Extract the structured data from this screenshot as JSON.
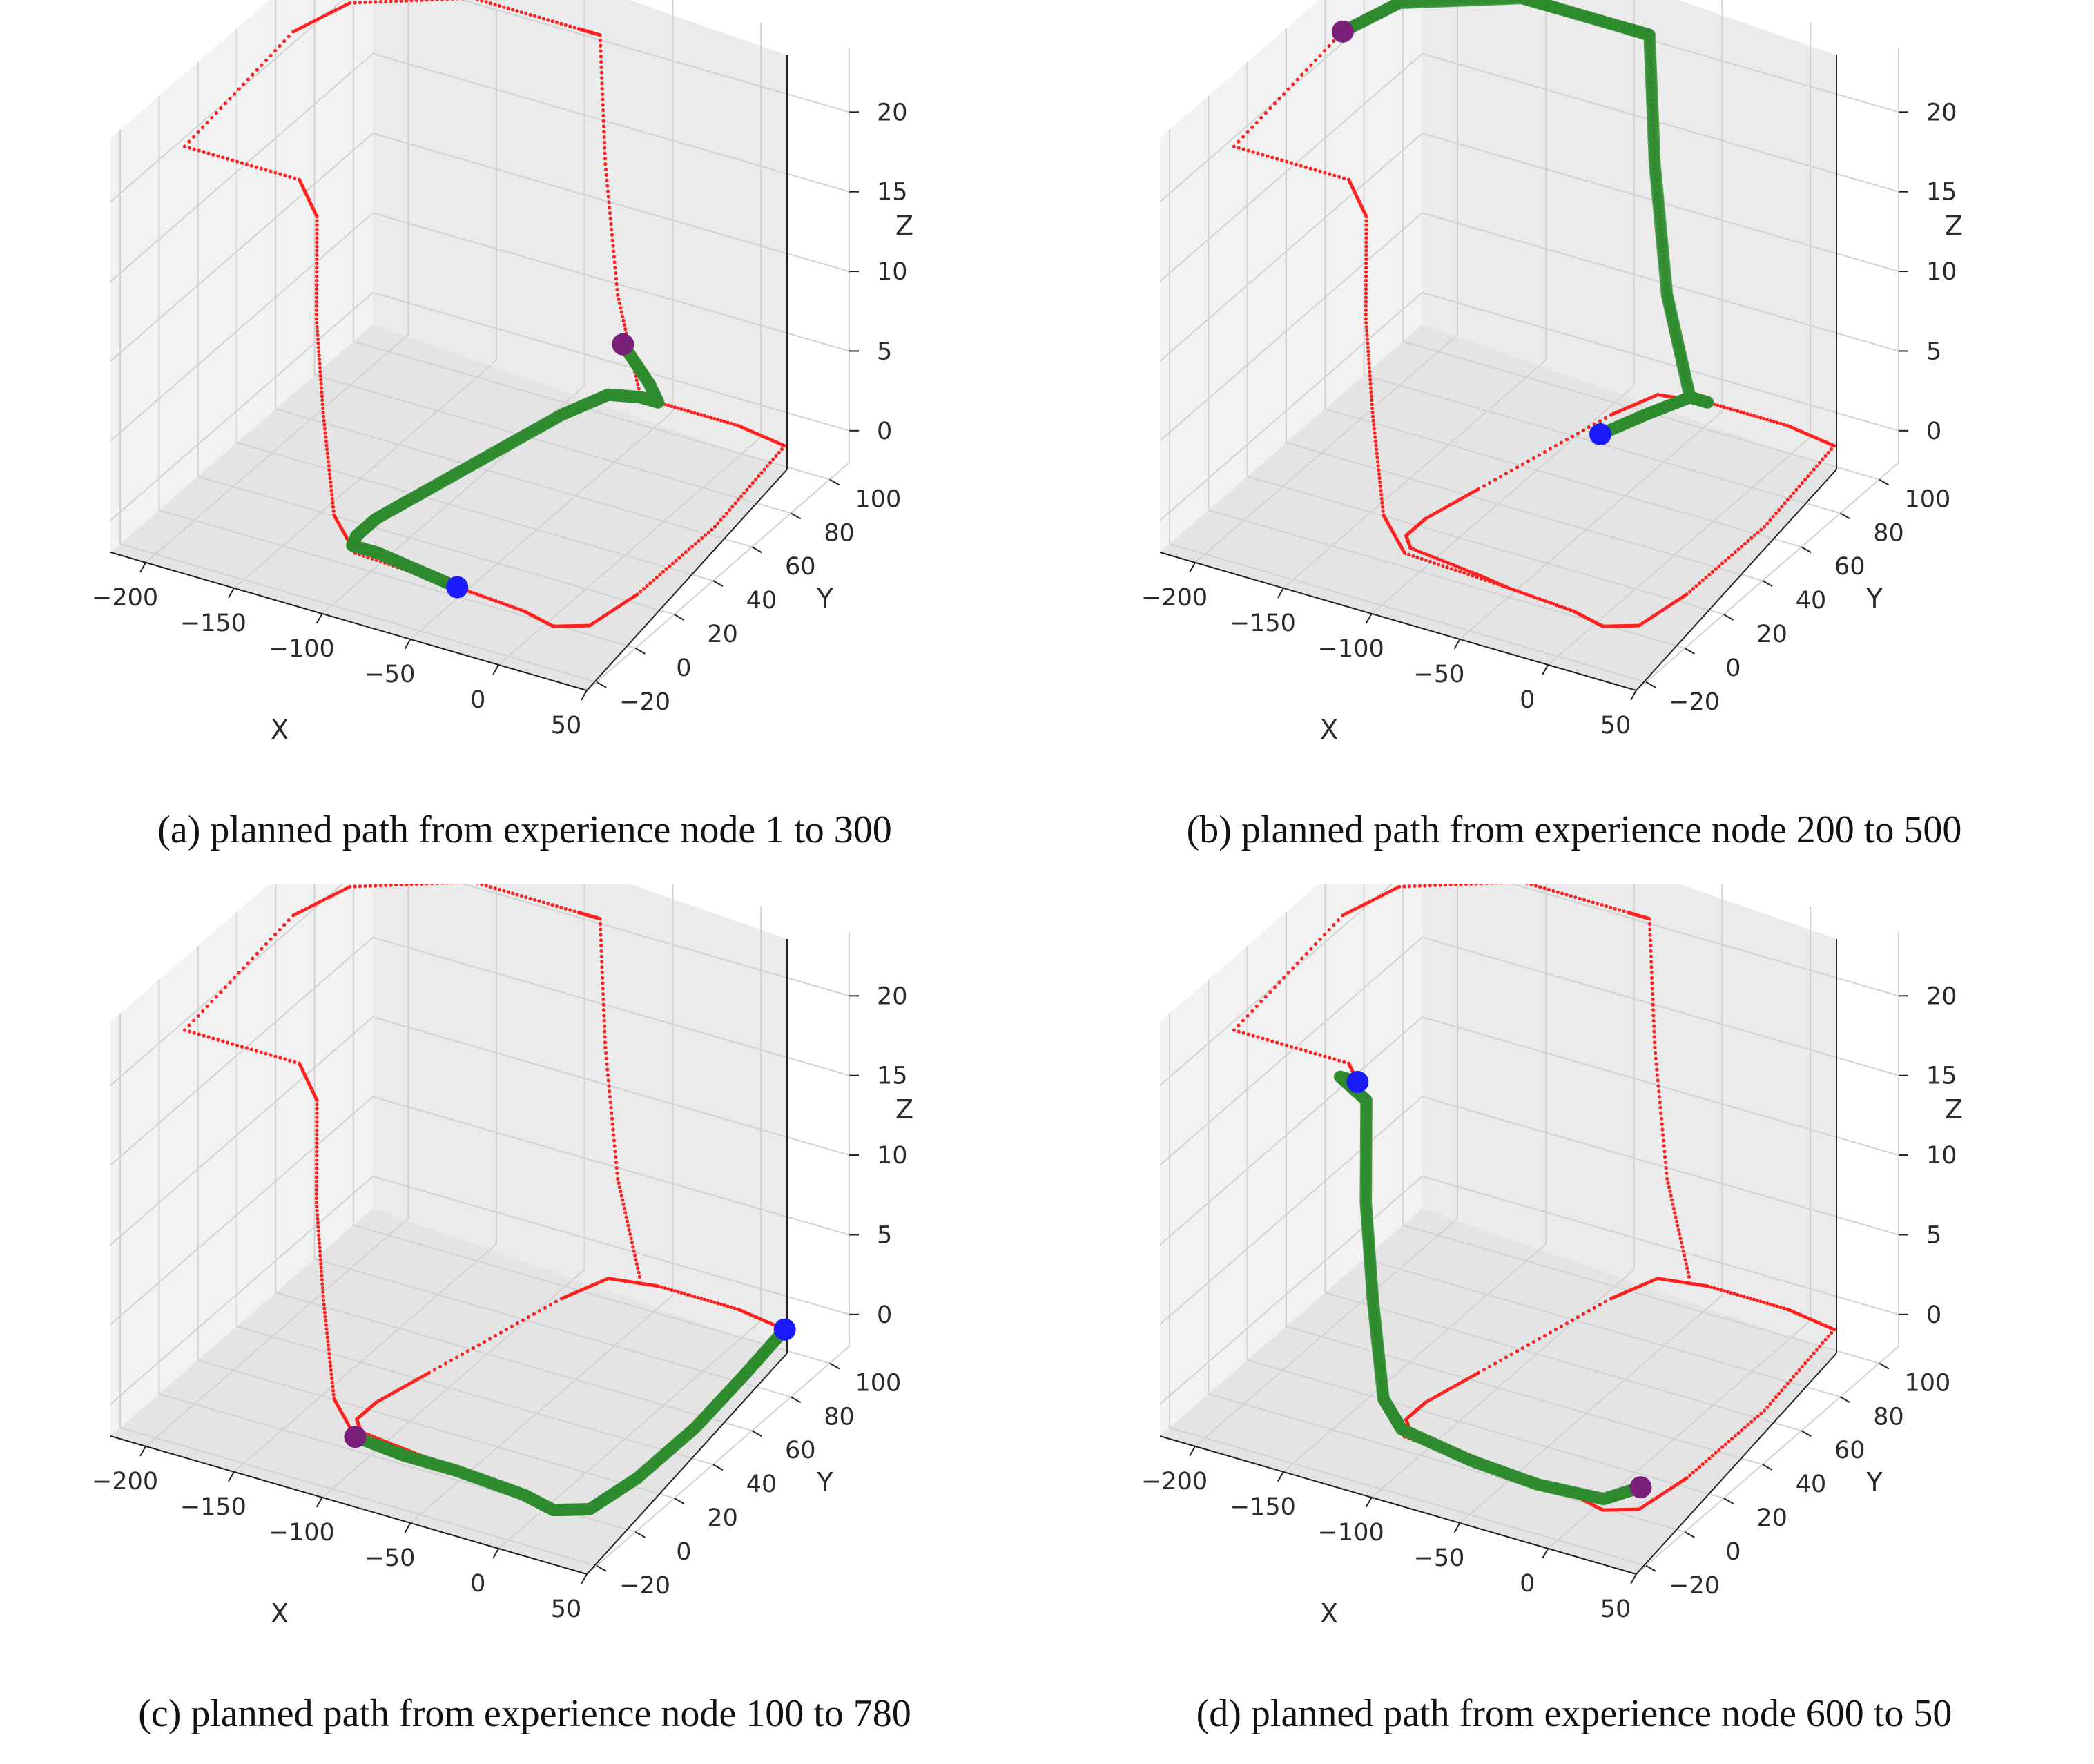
{
  "figure": {
    "panels": [
      {
        "id": "a",
        "caption": "(a) planned path from experience node 1 to 300",
        "chart_data": {
          "type": "scatter3d",
          "xlabel": "X",
          "ylabel": "Y",
          "zlabel": "Z",
          "xlim": [
            -220,
            50
          ],
          "ylim": [
            -25,
            110
          ],
          "zlim": [
            -2,
            24
          ],
          "xticks": [
            -200,
            -150,
            -100,
            -50,
            0,
            50
          ],
          "yticks": [
            -20,
            0,
            20,
            40,
            60,
            80,
            100
          ],
          "zticks": [
            0,
            5,
            10,
            15,
            20
          ],
          "colors": {
            "trajectory": "#ff2020",
            "planned": "#2e8b2e",
            "start": "#1a1aff",
            "goal": "#7a1f7a"
          },
          "planned_path": [
            [
              -40,
              -10,
              0
            ],
            [
              -60,
              -8,
              0
            ],
            [
              -90,
              -5,
              0
            ],
            [
              -105,
              -5,
              0
            ],
            [
              -108,
              0,
              0
            ],
            [
              -108,
              10,
              0
            ],
            [
              -100,
              30,
              0
            ],
            [
              -90,
              55,
              0
            ],
            [
              -80,
              80,
              0
            ],
            [
              -70,
              95,
              0
            ],
            [
              -55,
              98,
              0
            ],
            [
              -45,
              98,
              0
            ],
            [
              -50,
              98,
              1
            ],
            [
              -65,
              98,
              3
            ]
          ],
          "start": [
            -40,
            -10,
            0
          ],
          "goal": [
            -65,
            98,
            3
          ]
        }
      },
      {
        "id": "b",
        "caption": "(b) planned path from experience node 200 to 500",
        "chart_data": {
          "type": "scatter3d",
          "xlabel": "X",
          "ylabel": "Y",
          "zlabel": "Z",
          "xlim": [
            -220,
            50
          ],
          "ylim": [
            -25,
            110
          ],
          "zlim": [
            -2,
            24
          ],
          "xticks": [
            -200,
            -150,
            -100,
            -50,
            0,
            50
          ],
          "yticks": [
            -20,
            0,
            20,
            40,
            60,
            80,
            100
          ],
          "zticks": [
            0,
            5,
            10,
            15,
            20
          ],
          "colors": {
            "trajectory": "#ff2020",
            "planned": "#2e8b2e",
            "start": "#1a1aff",
            "goal": "#7a1f7a"
          },
          "planned_path": [
            [
              -75,
              70,
              0
            ],
            [
              -65,
              85,
              0
            ],
            [
              -55,
              98,
              0
            ],
            [
              -45,
              98,
              0
            ],
            [
              -55,
              98,
              0
            ],
            [
              -68,
              98,
              6
            ],
            [
              -75,
              98,
              14
            ],
            [
              -78,
              98,
              22
            ],
            [
              -90,
              98,
              22
            ],
            [
              -130,
              98,
              22
            ],
            [
              -150,
              98,
              22
            ],
            [
              -200,
              80,
              22
            ],
            [
              -210,
              60,
              22
            ]
          ],
          "start": [
            -75,
            70,
            0
          ],
          "goal": [
            -210,
            60,
            22
          ]
        }
      },
      {
        "id": "c",
        "caption": "(c) planned path from experience node 100 to 780",
        "chart_data": {
          "type": "scatter3d",
          "xlabel": "X",
          "ylabel": "Y",
          "zlabel": "Z",
          "xlim": [
            -220,
            50
          ],
          "ylim": [
            -25,
            110
          ],
          "zlim": [
            -2,
            24
          ],
          "xticks": [
            -200,
            -150,
            -100,
            -50,
            0,
            50
          ],
          "yticks": [
            -20,
            0,
            20,
            40,
            60,
            80,
            100
          ],
          "zticks": [
            0,
            5,
            10,
            15,
            20
          ],
          "colors": {
            "trajectory": "#ff2020",
            "planned": "#2e8b2e",
            "start": "#1a1aff",
            "goal": "#7a1f7a"
          },
          "planned_path": [
            [
              30,
              95,
              0
            ],
            [
              35,
              70,
              0
            ],
            [
              40,
              40,
              0
            ],
            [
              40,
              10,
              0
            ],
            [
              35,
              -10,
              0
            ],
            [
              20,
              -15,
              0
            ],
            [
              0,
              -12,
              0
            ],
            [
              -40,
              -10,
              0
            ],
            [
              -70,
              -10,
              0
            ],
            [
              -100,
              -8,
              0
            ]
          ],
          "start": [
            30,
            95,
            0
          ],
          "goal": [
            -100,
            -8,
            0
          ]
        }
      },
      {
        "id": "d",
        "caption": "(d) planned path from experience node 600 to 50",
        "chart_data": {
          "type": "scatter3d",
          "xlabel": "X",
          "ylabel": "Y",
          "zlabel": "Z",
          "xlim": [
            -220,
            50
          ],
          "ylim": [
            -25,
            110
          ],
          "zlim": [
            -2,
            24
          ],
          "xticks": [
            -200,
            -150,
            -100,
            -50,
            0,
            50
          ],
          "yticks": [
            -20,
            0,
            20,
            40,
            60,
            80,
            100
          ],
          "zticks": [
            0,
            5,
            10,
            15,
            20
          ],
          "colors": {
            "trajectory": "#ff2020",
            "planned": "#2e8b2e",
            "start": "#1a1aff",
            "goal": "#7a1f7a"
          },
          "planned_path": [
            [
              -130,
              -5,
              21
            ],
            [
              -140,
              -5,
              21
            ],
            [
              -125,
              -5,
              20
            ],
            [
              -122,
              -8,
              14
            ],
            [
              -118,
              -8,
              8
            ],
            [
              -112,
              -8,
              2
            ],
            [
              -105,
              -5,
              0
            ],
            [
              -60,
              -10,
              0
            ],
            [
              -20,
              -12,
              0
            ],
            [
              15,
              -10,
              0
            ],
            [
              25,
              0,
              0
            ]
          ],
          "start": [
            -130,
            -5,
            21
          ],
          "goal": [
            25,
            0,
            0
          ]
        }
      }
    ],
    "reference_trajectory": [
      [
        -40,
        -10,
        0
      ],
      [
        -60,
        -8,
        0
      ],
      [
        -100,
        -5,
        0
      ],
      [
        -108,
        0,
        0
      ],
      [
        -108,
        10,
        0
      ],
      [
        -100,
        30,
        0
      ],
      [
        -80,
        80,
        0
      ],
      [
        -70,
        95,
        0
      ],
      [
        -45,
        98,
        0
      ],
      [
        0,
        98,
        0
      ],
      [
        30,
        95,
        0
      ],
      [
        40,
        50,
        0
      ],
      [
        40,
        10,
        0
      ],
      [
        35,
        -10,
        0
      ],
      [
        20,
        -15,
        0
      ],
      [
        0,
        -12,
        0
      ],
      [
        -40,
        -10,
        0
      ],
      [
        -100,
        -8,
        0
      ],
      [
        -112,
        -8,
        2
      ],
      [
        -118,
        -8,
        8
      ],
      [
        -122,
        -8,
        14
      ],
      [
        -125,
        -5,
        20
      ],
      [
        -135,
        -5,
        22
      ],
      [
        -200,
        -5,
        22
      ],
      [
        -210,
        60,
        22
      ],
      [
        -200,
        80,
        22
      ],
      [
        -150,
        98,
        22
      ],
      [
        -90,
        98,
        22
      ],
      [
        -78,
        98,
        22
      ],
      [
        -75,
        98,
        14
      ],
      [
        -68,
        98,
        6
      ],
      [
        -55,
        98,
        0
      ]
    ]
  }
}
